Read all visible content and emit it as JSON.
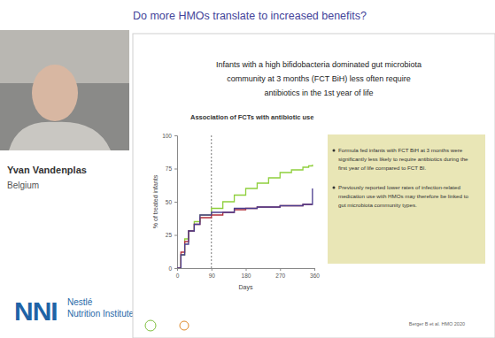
{
  "header": {
    "title": "Do more HMOs translate to increased benefits?"
  },
  "speaker": {
    "name": "Yvan Vandenplas",
    "country": "Belgium"
  },
  "logo": {
    "letters": "NNI",
    "lines": [
      "Nestlé",
      "Nutrition Institute"
    ]
  },
  "slide": {
    "title_lines": [
      "Infants with a high bifidobacteria dominated gut microbiota",
      "community at 3 months (FCT BiH) less often require",
      "antibiotics in the 1st year of life"
    ],
    "bullets": [
      [
        "Formula fed infants with FCT BiH at 3 months were",
        "significantly less likely to require antibiotics during the",
        "first year of life compared to FCT BI."
      ],
      [
        "Previously reported lower rates of infection-related",
        "medication use with HMOs may therefore be linked to",
        "gut microbiota community types."
      ]
    ],
    "reference": "Berger B et al. HMO 2020"
  },
  "chart_data": {
    "type": "line",
    "title": "Association of FCTs with antibiotic use",
    "x_label": "Days",
    "y_label": "% of treated infants",
    "x": [
      0,
      10,
      20,
      30,
      45,
      60,
      90,
      120,
      150,
      180,
      210,
      240,
      270,
      300,
      330,
      345,
      355
    ],
    "xlim": [
      0,
      360
    ],
    "xticks": [
      0,
      90,
      180,
      270,
      360
    ],
    "ylim": [
      0,
      100
    ],
    "yticks": [
      0,
      25,
      50,
      75,
      100
    ],
    "grid": false,
    "vline_x": 90,
    "series": [
      {
        "color": "#8fcf3c",
        "line_style": "step",
        "values": [
          0,
          10,
          22,
          28,
          35,
          40,
          45,
          50,
          55,
          60,
          64,
          68,
          72,
          74,
          76,
          77,
          78
        ]
      },
      {
        "color": "#b3303c",
        "line_style": "step",
        "values": [
          0,
          12,
          20,
          28,
          33,
          38,
          40,
          42,
          44,
          45,
          46,
          46,
          47,
          47,
          48,
          48,
          48
        ]
      },
      {
        "color": "#4a3c8e",
        "line_style": "step",
        "values": [
          0,
          10,
          18,
          28,
          33,
          40,
          42,
          42,
          45,
          45,
          46,
          46,
          47,
          47,
          48,
          48,
          60
        ]
      }
    ]
  }
}
